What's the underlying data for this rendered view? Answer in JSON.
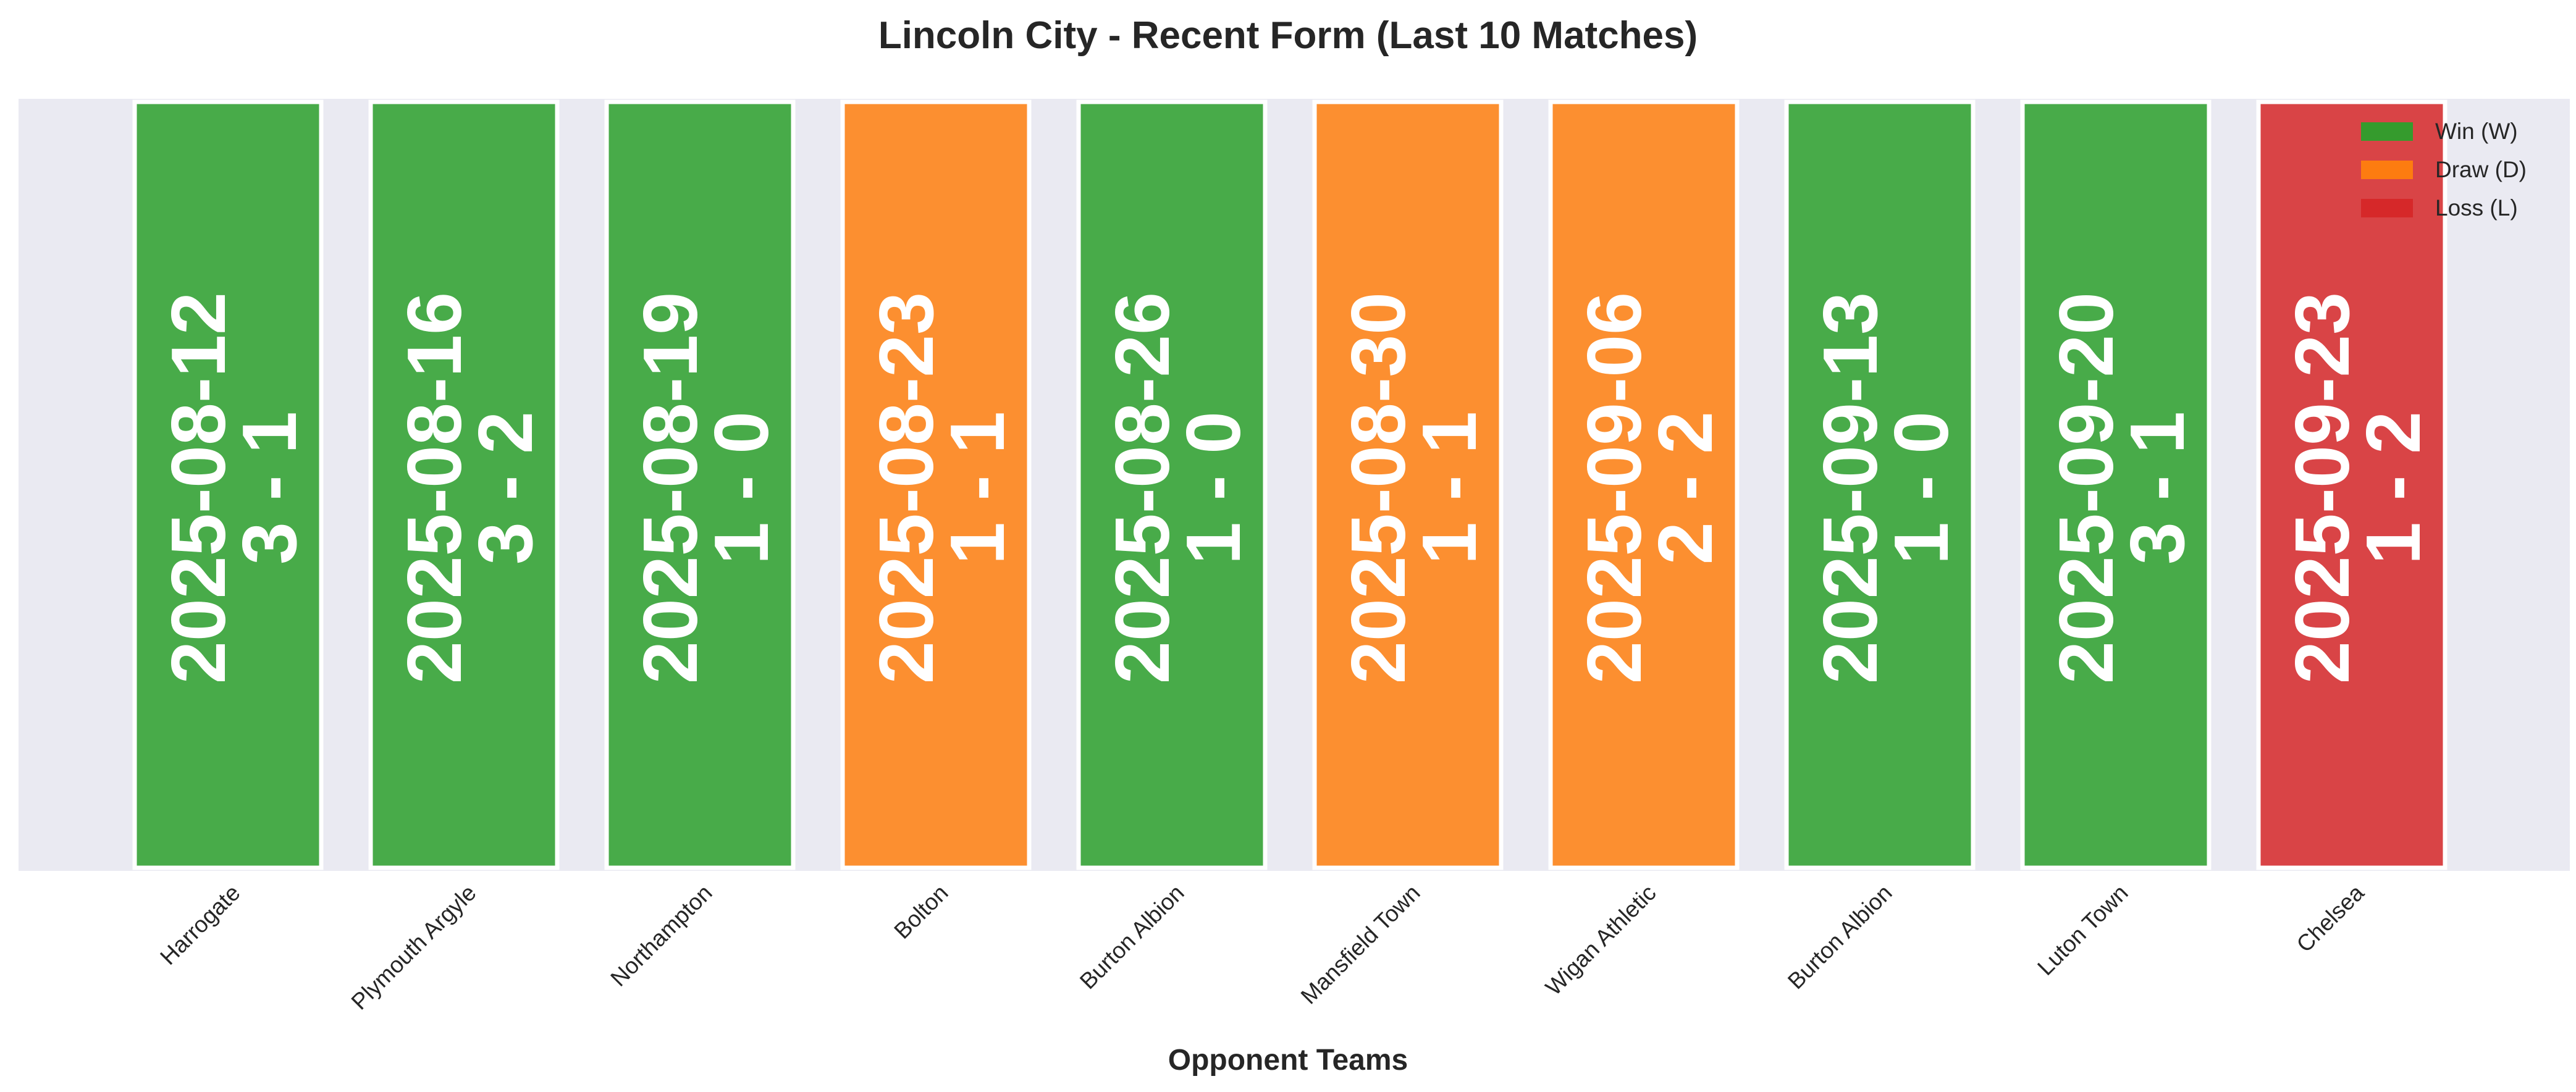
{
  "chart_data": {
    "type": "bar",
    "title": "Lincoln City - Recent Form (Last 10 Matches)",
    "xlabel": "Opponent Teams",
    "ylabel": "",
    "ylim": [
      0,
      1
    ],
    "grid": false,
    "legend_position": "top-right",
    "categories": [
      "Harrogate",
      "Plymouth Argyle",
      "Northampton",
      "Bolton",
      "Burton Albion",
      "Mansfield Town",
      "Wigan Athletic",
      "Burton Albion",
      "Luton Town",
      "Chelsea"
    ],
    "values": [
      1,
      1,
      1,
      1,
      1,
      1,
      1,
      1,
      1,
      1
    ],
    "dates": [
      "2025-08-12",
      "2025-08-16",
      "2025-08-19",
      "2025-08-23",
      "2025-08-26",
      "2025-08-30",
      "2025-09-06",
      "2025-09-13",
      "2025-09-20",
      "2025-09-23"
    ],
    "scores": [
      "3 - 1",
      "3 - 2",
      "1 - 0",
      "1 - 1",
      "1 - 0",
      "1 - 1",
      "2 - 2",
      "1 - 0",
      "3 - 1",
      "1 - 2"
    ],
    "results": [
      "W",
      "W",
      "W",
      "D",
      "W",
      "D",
      "D",
      "W",
      "W",
      "L"
    ],
    "legend": [
      {
        "key": "W",
        "label": "Win (W)",
        "color": "#2ca02c"
      },
      {
        "key": "D",
        "label": "Draw (D)",
        "color": "#ff7f0e"
      },
      {
        "key": "L",
        "label": "Loss (L)",
        "color": "#d62728"
      }
    ],
    "plot_background": "#eaeaf2"
  }
}
